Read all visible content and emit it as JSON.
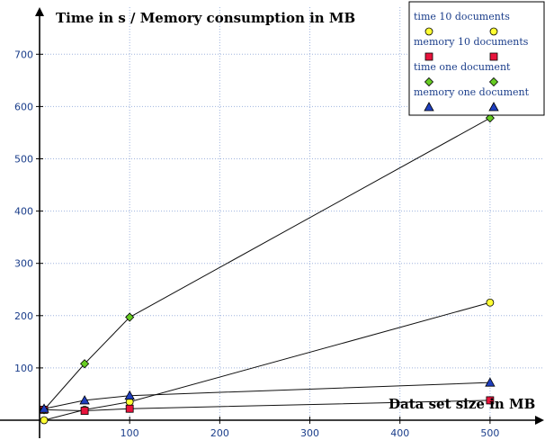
{
  "chart_data": {
    "type": "line",
    "title": "Time in s / Memory consumption in MB",
    "xlabel": "Data set size in MB",
    "ylabel": "",
    "xlim": [
      0,
      560
    ],
    "ylim": [
      0,
      790
    ],
    "xticks": [
      100,
      200,
      300,
      400,
      500
    ],
    "yticks": [
      100,
      200,
      300,
      400,
      500,
      600,
      700
    ],
    "grid": true,
    "legend_position": "top-right",
    "series": [
      {
        "name": "time 10 documents",
        "marker": "circle",
        "color": "#ffff33",
        "x": [
          5,
          50,
          100,
          500
        ],
        "y": [
          0,
          20,
          35,
          225
        ]
      },
      {
        "name": "memory 10 documents",
        "marker": "square",
        "color": "#e8143c",
        "x": [
          5,
          50,
          100,
          500
        ],
        "y": [
          20,
          18,
          22,
          38
        ]
      },
      {
        "name": "time one document",
        "marker": "diamond",
        "color": "#66cc22",
        "x": [
          5,
          50,
          100,
          500
        ],
        "y": [
          20,
          108,
          197,
          578
        ]
      },
      {
        "name": "memory one document",
        "marker": "triangle",
        "color": "#1f3fbf",
        "x": [
          5,
          50,
          100,
          500
        ],
        "y": [
          22,
          38,
          47,
          72
        ]
      }
    ]
  }
}
